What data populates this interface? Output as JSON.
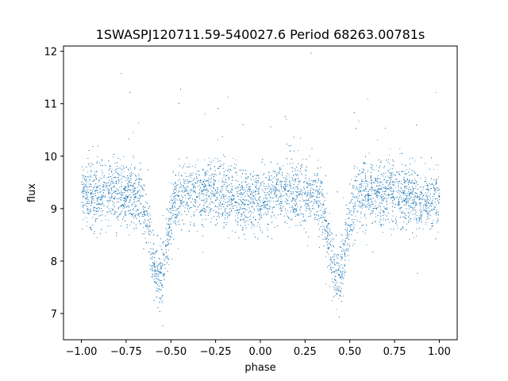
{
  "chart_data": {
    "type": "scatter",
    "title": "1SWASPJ120711.59-540027.6 Period 68263.00781s",
    "xlabel": "phase",
    "ylabel": "flux",
    "xlim": [
      -1.1,
      1.1
    ],
    "ylim": [
      6.5,
      12.1
    ],
    "x_ticks": [
      -1.0,
      -0.75,
      -0.5,
      -0.25,
      0.0,
      0.25,
      0.5,
      0.75,
      1.0
    ],
    "x_tick_labels": [
      "−1.00",
      "−0.75",
      "−0.50",
      "−0.25",
      "0.00",
      "0.25",
      "0.50",
      "0.75",
      "1.00"
    ],
    "y_ticks": [
      7,
      8,
      9,
      10,
      11,
      12
    ],
    "y_tick_labels": [
      "7",
      "8",
      "9",
      "10",
      "11",
      "12"
    ],
    "grid": false,
    "legend": "none",
    "marker_color": "#1f77b4",
    "light_curve": {
      "phase_range": [
        -1.0,
        1.0
      ],
      "baseline_flux": 9.3,
      "scatter_sigma": 0.3,
      "eclipses": [
        {
          "phase": -0.57,
          "min_flux": 7.7
        },
        {
          "phase": 0.43,
          "min_flux": 7.7
        }
      ],
      "secondary_dips": [
        {
          "phase": -0.07,
          "min_flux": 9.15
        },
        {
          "phase": 0.93,
          "min_flux": 9.15
        }
      ]
    }
  }
}
